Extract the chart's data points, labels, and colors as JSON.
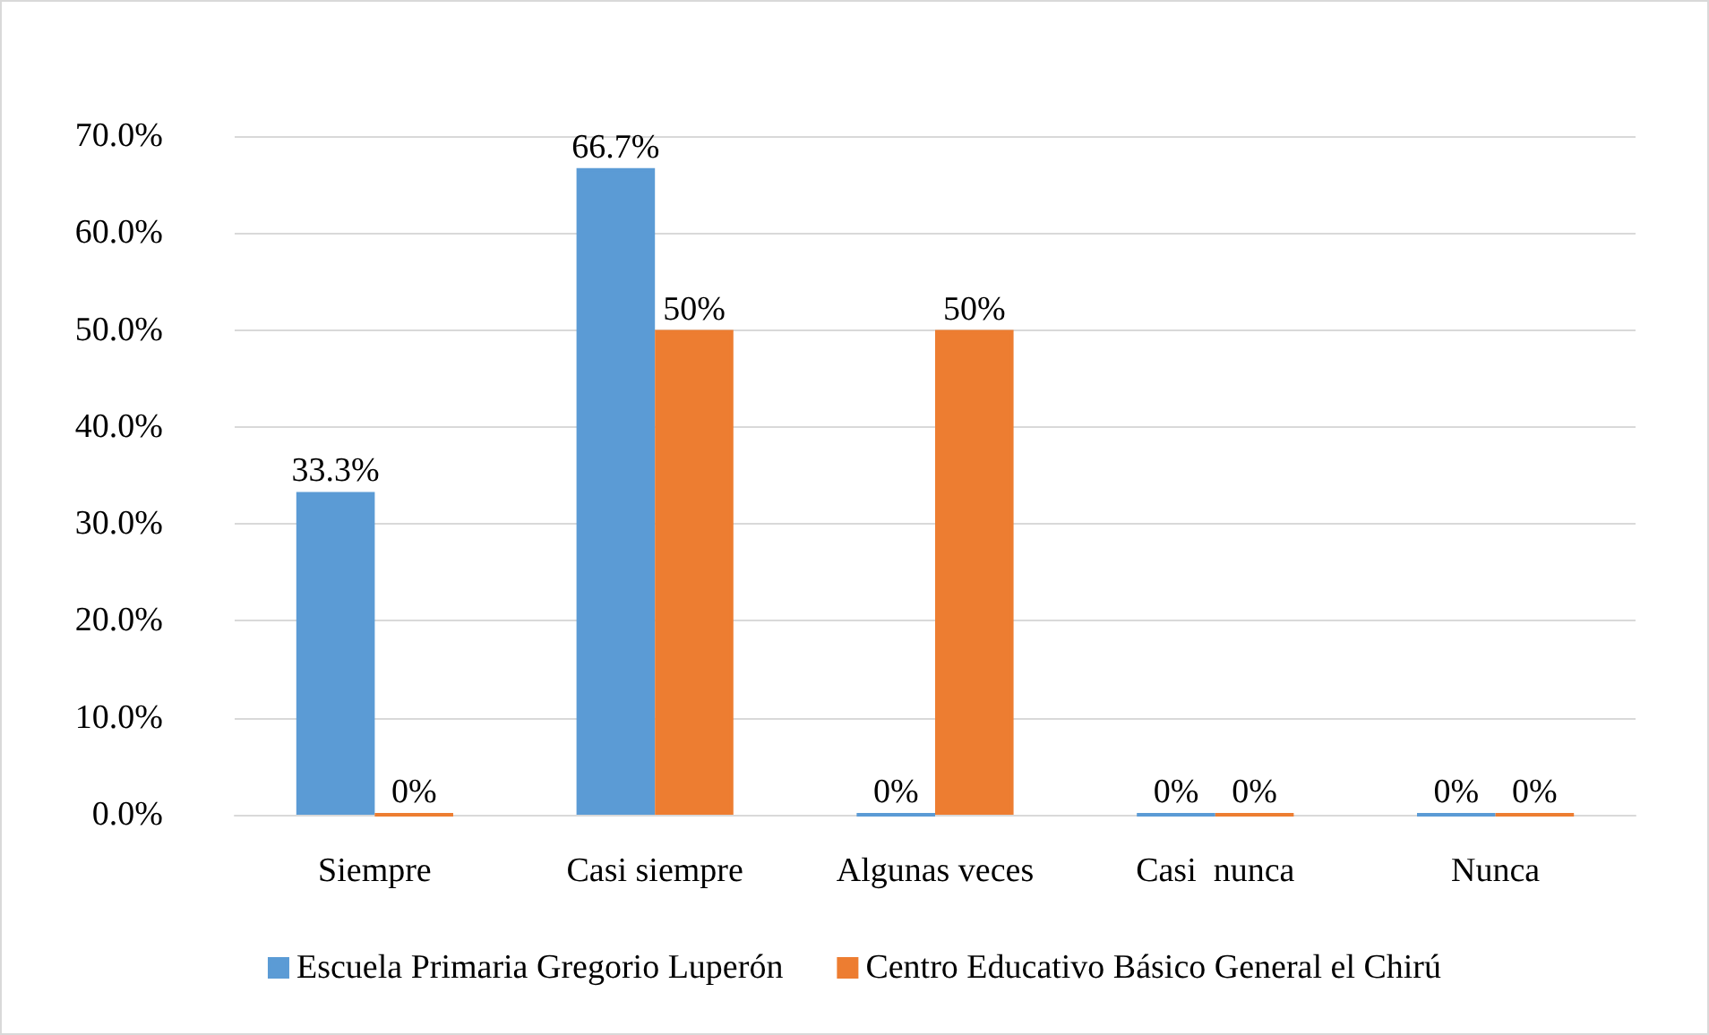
{
  "chart_data": {
    "type": "bar",
    "categories": [
      "Siempre",
      "Casi siempre",
      "Algunas veces",
      "Casi  nunca",
      "Nunca"
    ],
    "series": [
      {
        "name": "Escuela Primaria Gregorio Luperón",
        "color": "#5b9bd5",
        "values": [
          33.3,
          66.7,
          0,
          0,
          0
        ],
        "value_labels": [
          "33.3%",
          "66.7%",
          "0%",
          "0%",
          "0%"
        ]
      },
      {
        "name": "Centro Educativo Básico General el Chirú",
        "color": "#ed7d31",
        "values": [
          0,
          50,
          50,
          0,
          0
        ],
        "value_labels": [
          "0%",
          "50%",
          "50%",
          "0%",
          "0%"
        ]
      }
    ],
    "ylim": [
      0,
      70
    ],
    "yticks": [
      {
        "value": 0,
        "label": "0.0%"
      },
      {
        "value": 10,
        "label": "10.0%"
      },
      {
        "value": 20,
        "label": "20.0%"
      },
      {
        "value": 30,
        "label": "30.0%"
      },
      {
        "value": 40,
        "label": "40.0%"
      },
      {
        "value": 50,
        "label": "50.0%"
      },
      {
        "value": 60,
        "label": "60.0%"
      },
      {
        "value": 70,
        "label": "70.0%"
      }
    ],
    "grid": "y",
    "legend": "bottom"
  }
}
